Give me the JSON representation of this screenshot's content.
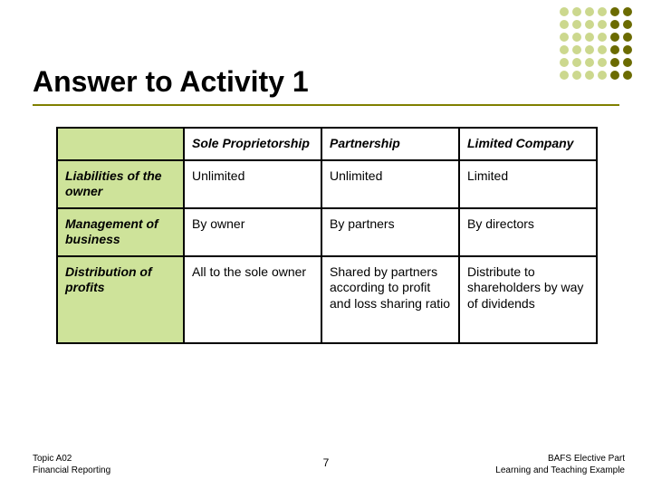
{
  "title": "Answer to Activity 1",
  "decor": {
    "light": "#ccd88e",
    "dark": "#6b6b00",
    "rows": 6,
    "cols": 6,
    "split_col": 4
  },
  "table": {
    "background_green": "#cee39a",
    "background_white": "#ffffff",
    "border_color": "#000000",
    "columns": [
      "",
      "Sole Proprietorship",
      "Partnership",
      "Limited Company"
    ],
    "rows": [
      {
        "label": "Liabilities of the owner",
        "cells": [
          "Unlimited",
          "Unlimited",
          "Limited"
        ]
      },
      {
        "label": "Management of business",
        "cells": [
          "By owner",
          "By partners",
          "By directors"
        ]
      },
      {
        "label": "Distribution of profits",
        "cells": [
          "All to the sole owner",
          "Shared by partners according to profit and loss sharing ratio",
          "Distribute to shareholders by way of dividends"
        ]
      }
    ]
  },
  "footer": {
    "left_line1": "Topic A02",
    "left_line2": "Financial Reporting",
    "page": "7",
    "right_line1": "BAFS Elective Part",
    "right_line2": "Learning and Teaching Example"
  }
}
